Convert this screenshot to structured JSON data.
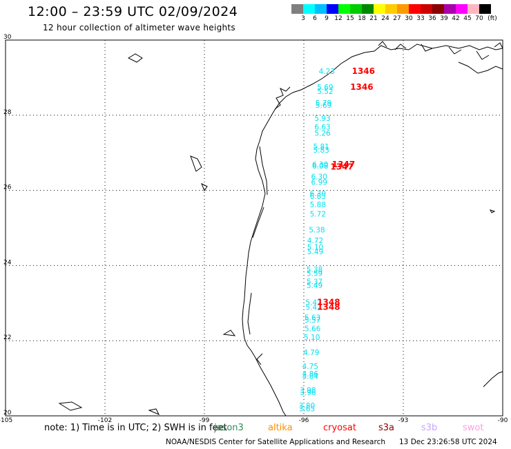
{
  "header": {
    "title": "12:00 – 23:59 UTC 02/09/2024",
    "subtitle": "12 hour collection of altimeter wave heights"
  },
  "legend": {
    "labels": [
      "3",
      "6",
      "9",
      "12",
      "15",
      "18",
      "21",
      "24",
      "27",
      "30",
      "33",
      "36",
      "39",
      "42",
      "45",
      "70"
    ],
    "unit": "(ft)",
    "colors": [
      "#7f7f7f",
      "#00ffff",
      "#00bfff",
      "#0000ff",
      "#00ff00",
      "#00cc00",
      "#008800",
      "#ffff00",
      "#ffcc00",
      "#ff9900",
      "#ff0000",
      "#cc0000",
      "#880000",
      "#aa00aa",
      "#ff00ff",
      "#ffb6c1",
      "#000000"
    ]
  },
  "map": {
    "lat_labels": [
      "30",
      "28",
      "26",
      "24",
      "22",
      "20"
    ],
    "lon_labels": [
      "-105",
      "-102",
      "-99",
      "-96",
      "-93",
      "-90"
    ],
    "land_color": "#000000",
    "grid_color": "#000000",
    "swh_color": "#00e0f0",
    "pass_color": "#ff0000",
    "swh_points": [
      {
        "v": "4.23",
        "lon": -95.55,
        "lat": 29.1
      },
      {
        "v": "5.69",
        "lon": -95.6,
        "lat": 28.68
      },
      {
        "v": "5.52",
        "lon": -95.6,
        "lat": 28.57
      },
      {
        "v": "5.79",
        "lon": -95.65,
        "lat": 28.25
      },
      {
        "v": "5.69",
        "lon": -95.65,
        "lat": 28.2
      },
      {
        "v": "5.93",
        "lon": -95.68,
        "lat": 27.85
      },
      {
        "v": "6.63",
        "lon": -95.68,
        "lat": 27.62
      },
      {
        "v": "5.26",
        "lon": -95.68,
        "lat": 27.45
      },
      {
        "v": "5.81",
        "lon": -95.72,
        "lat": 27.1
      },
      {
        "v": "5.83",
        "lon": -95.72,
        "lat": 27.0
      },
      {
        "v": "6.30",
        "lon": -95.75,
        "lat": 26.62
      },
      {
        "v": "6.08",
        "lon": -95.75,
        "lat": 26.58
      },
      {
        "v": "6.30",
        "lon": -95.78,
        "lat": 26.3
      },
      {
        "v": "6.99",
        "lon": -95.78,
        "lat": 26.15
      },
      {
        "v": "6.30",
        "lon": -95.82,
        "lat": 25.85
      },
      {
        "v": "6.83",
        "lon": -95.82,
        "lat": 25.77
      },
      {
        "v": "5.88",
        "lon": -95.82,
        "lat": 25.55
      },
      {
        "v": "5.72",
        "lon": -95.82,
        "lat": 25.3
      },
      {
        "v": "5.38",
        "lon": -95.85,
        "lat": 24.88
      },
      {
        "v": "4.72",
        "lon": -95.9,
        "lat": 24.6
      },
      {
        "v": "5.10",
        "lon": -95.9,
        "lat": 24.42
      },
      {
        "v": "5.49",
        "lon": -95.9,
        "lat": 24.3
      },
      {
        "v": "5.38",
        "lon": -95.92,
        "lat": 23.82
      },
      {
        "v": "5.59",
        "lon": -95.92,
        "lat": 23.72
      },
      {
        "v": "5.37",
        "lon": -95.92,
        "lat": 23.5
      },
      {
        "v": "5.49",
        "lon": -95.92,
        "lat": 23.4
      },
      {
        "v": "5.42",
        "lon": -95.95,
        "lat": 22.95
      },
      {
        "v": "5.42",
        "lon": -95.95,
        "lat": 22.82
      },
      {
        "v": "5.63",
        "lon": -95.98,
        "lat": 22.55
      },
      {
        "v": "5.57",
        "lon": -95.98,
        "lat": 22.48
      },
      {
        "v": "5.66",
        "lon": -95.98,
        "lat": 22.25
      },
      {
        "v": "5.10",
        "lon": -96.0,
        "lat": 22.02
      },
      {
        "v": "4.79",
        "lon": -96.02,
        "lat": 21.62
      },
      {
        "v": "4.75",
        "lon": -96.05,
        "lat": 21.25
      },
      {
        "v": "4.86",
        "lon": -96.05,
        "lat": 21.05
      },
      {
        "v": "4.84",
        "lon": -96.05,
        "lat": 20.98
      },
      {
        "v": "3.98",
        "lon": -96.12,
        "lat": 20.62
      },
      {
        "v": "3.96",
        "lon": -96.12,
        "lat": 20.55
      },
      {
        "v": "3.80",
        "lon": -96.15,
        "lat": 20.2
      },
      {
        "v": "3.65",
        "lon": -96.15,
        "lat": 20.12
      }
    ],
    "pass_labels": [
      {
        "v": "1346",
        "lon": -94.55,
        "lat": 29.1
      },
      {
        "v": "1346",
        "lon": -94.6,
        "lat": 28.68
      },
      {
        "v": "1347",
        "lon": -95.15,
        "lat": 26.62
      },
      {
        "v": "1347",
        "lon": -95.2,
        "lat": 26.55
      },
      {
        "v": "1348",
        "lon": -95.6,
        "lat": 22.95
      },
      {
        "v": "1348",
        "lon": -95.6,
        "lat": 22.82
      }
    ]
  },
  "note": {
    "text": "note:  1) Time is in UTC;  2) SWH is in feet",
    "missions": [
      {
        "name": "jason3",
        "color": "#2e8b57"
      },
      {
        "name": "altika",
        "color": "#ff8c00"
      },
      {
        "name": "cryosat",
        "color": "#ff0000"
      },
      {
        "name": "s3a",
        "color": "#8b0000"
      },
      {
        "name": "s3b",
        "color": "#c8a2ff"
      },
      {
        "name": "swot",
        "color": "#ff9de0"
      }
    ]
  },
  "credits": {
    "source": "NOAA/NESDIS Center for Satellite Applications and Research",
    "timestamp": "13 Dec 23:26:58 UTC 2024"
  }
}
